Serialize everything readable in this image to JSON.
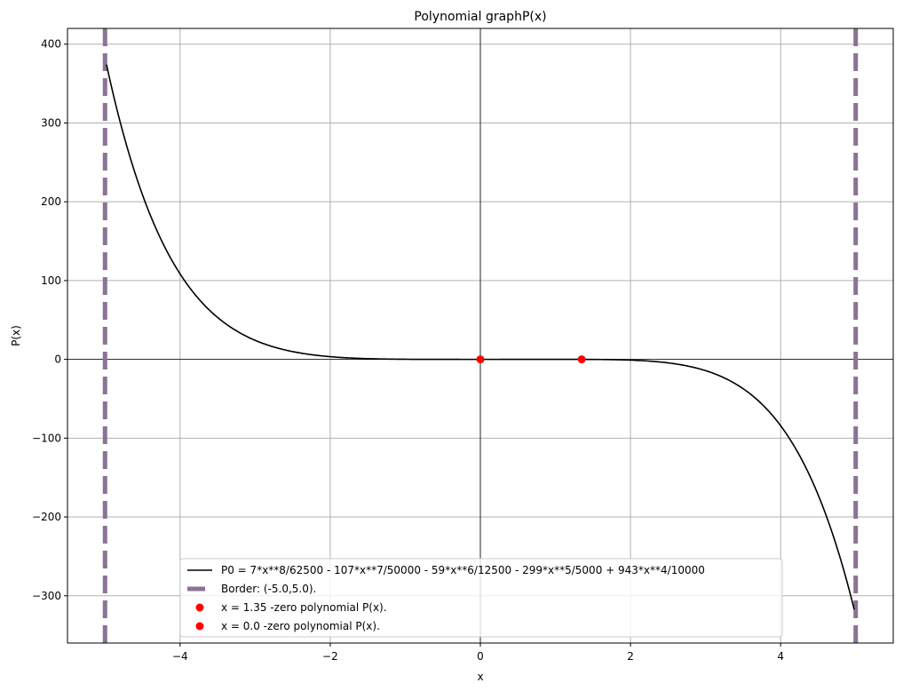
{
  "chart_data": {
    "type": "line",
    "title": "Polynomial graphP(x)",
    "xlabel": "x",
    "ylabel": "P(x)",
    "xlim": [
      -5.5,
      5.5
    ],
    "ylim": [
      -360,
      420
    ],
    "xticks": [
      -4,
      -2,
      0,
      2,
      4
    ],
    "xtick_labels": [
      "−4",
      "−2",
      "0",
      "2",
      "4"
    ],
    "yticks": [
      -300,
      -200,
      -100,
      0,
      100,
      200,
      300,
      400
    ],
    "ytick_labels": [
      "−300",
      "−200",
      "−100",
      "0",
      "100",
      "200",
      "300",
      "400"
    ],
    "grid": true,
    "legend_position": "lower center",
    "series": [
      {
        "name": "P0 = 7*x**8/62500 - 107*x**7/50000 - 59*x**6/12500 - 299*x**5/5000 + 943*x**4/10000",
        "kind": "line",
        "color": "#000000",
        "coefficients": {
          "8": 0.000112,
          "7": -0.00214,
          "6": -0.00472,
          "5": -0.0598,
          "4": 0.0943
        },
        "domain": [
          -4.98,
          4.98
        ]
      },
      {
        "name": "Border: (-5.0,5.0).",
        "kind": "vline",
        "color": "#8a7394",
        "x": [
          -5.0,
          5.0
        ]
      },
      {
        "name": "x = 1.35 -zero polynomial P(x).",
        "kind": "point",
        "color": "#ff0000",
        "x": 1.35,
        "y": 0
      },
      {
        "name": "x = 0.0 -zero polynomial P(x).",
        "kind": "point",
        "color": "#ff0000",
        "x": 0.0,
        "y": 0
      }
    ]
  }
}
